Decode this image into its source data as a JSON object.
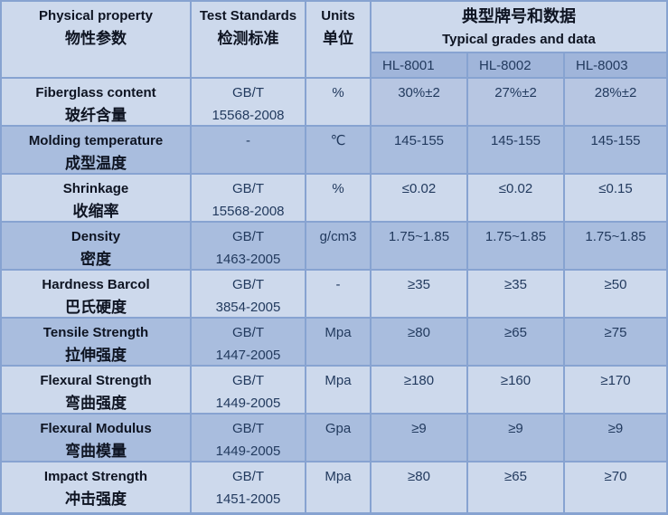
{
  "header": {
    "physical_property": {
      "en": "Physical property",
      "zh": "物性参数"
    },
    "test_standards": {
      "en": "Test Standards",
      "zh": "检测标准"
    },
    "units": {
      "en": "Units",
      "zh": "单位"
    },
    "grades_group": {
      "zh": "典型牌号和数据",
      "en": "Typical grades and data"
    },
    "grades": [
      "HL-8001",
      "HL-8002",
      "HL-8003"
    ]
  },
  "rows": [
    {
      "property_en": "Fiberglass content",
      "property_zh": "玻纤含量",
      "standard_l1": "GB/T",
      "standard_l2": "15568-2008",
      "unit": "%",
      "values": [
        "30%±2",
        "27%±2",
        "28%±2"
      ]
    },
    {
      "property_en": "Molding temperature",
      "property_zh": "成型温度",
      "standard_l1": "-",
      "standard_l2": "",
      "unit": "℃",
      "values": [
        "145-155",
        "145-155",
        "145-155"
      ]
    },
    {
      "property_en": "Shrinkage",
      "property_zh": "收缩率",
      "standard_l1": "GB/T",
      "standard_l2": "15568-2008",
      "unit": "%",
      "values": [
        "≤0.02",
        "≤0.02",
        "≤0.15"
      ]
    },
    {
      "property_en": "Density",
      "property_zh": "密度",
      "standard_l1": "GB/T",
      "standard_l2": "1463-2005",
      "unit": "g/cm3",
      "values": [
        "1.75~1.85",
        "1.75~1.85",
        "1.75~1.85"
      ]
    },
    {
      "property_en": "Hardness Barcol",
      "property_zh": "巴氏硬度",
      "standard_l1": "GB/T",
      "standard_l2": "3854-2005",
      "unit": "-",
      "values": [
        "≥35",
        "≥35",
        "≥50"
      ]
    },
    {
      "property_en": "Tensile Strength",
      "property_zh": "拉伸强度",
      "standard_l1": "GB/T",
      "standard_l2": "1447-2005",
      "unit": "Mpa",
      "values": [
        "≥80",
        "≥65",
        "≥75"
      ]
    },
    {
      "property_en": "Flexural Strength",
      "property_zh": "弯曲强度",
      "standard_l1": "GB/T",
      "standard_l2": "1449-2005",
      "unit": "Mpa",
      "values": [
        "≥180",
        "≥160",
        "≥170"
      ]
    },
    {
      "property_en": "Flexural Modulus",
      "property_zh": "弯曲模量",
      "standard_l1": "GB/T",
      "standard_l2": "1449-2005",
      "unit": "Gpa",
      "values": [
        "≥9",
        "≥9",
        "≥9"
      ]
    },
    {
      "property_en": "Impact Strength",
      "property_zh": "冲击强度",
      "standard_l1": "GB/T",
      "standard_l2": "1451-2005",
      "unit": "Mpa",
      "values": [
        "≥80",
        "≥65",
        "≥70"
      ]
    }
  ],
  "colors": {
    "row_light": "#cdd9ec",
    "row_dark": "#a9bdde",
    "grade_row": "#a0b5da",
    "first_row_values": "#b7c6e2",
    "grid_border": "#87a3d1",
    "value_text": "#223a5e",
    "header_text": "#0e1422"
  }
}
